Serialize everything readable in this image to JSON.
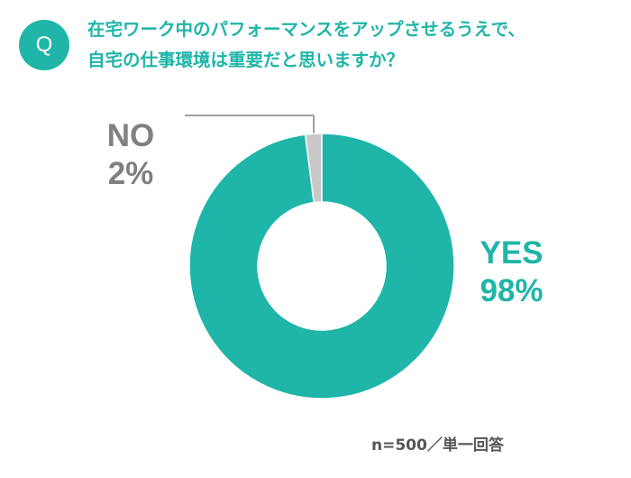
{
  "badge": "Q",
  "question": {
    "line1": "在宅ワーク中のパフォーマンスをアップさせるうえで、",
    "line2": "自宅の仕事環境は重要だと思いますか？"
  },
  "chart_data": {
    "type": "pie",
    "style": "donut",
    "slices": [
      {
        "label": "NO",
        "value": 2,
        "value_text": "2%",
        "color": "#c8c8c8",
        "text_color": "#808080"
      },
      {
        "label": "YES",
        "value": 98,
        "value_text": "98%",
        "color": "#1fb5a8",
        "text_color": "#1fb5a8"
      }
    ],
    "start": "12 o'clock",
    "direction": "counter-clockwise"
  },
  "note": "n=500／単一回答"
}
